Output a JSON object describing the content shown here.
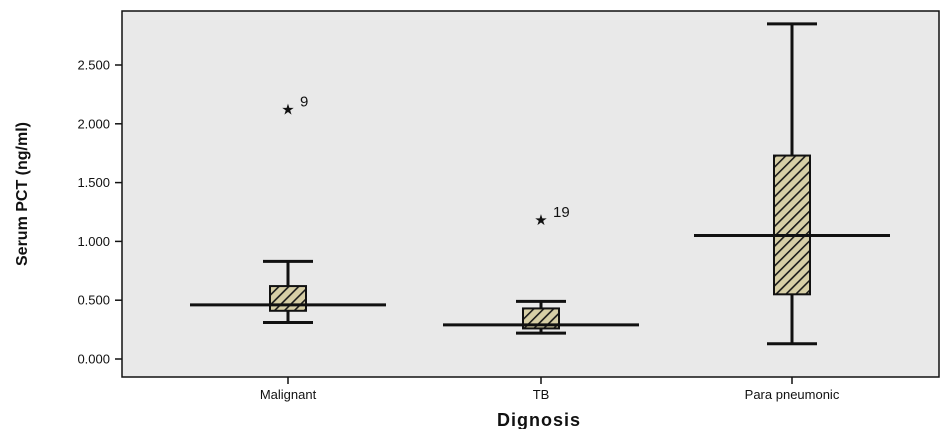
{
  "chart_data": {
    "type": "boxplot",
    "xlabel": "Dignosis",
    "ylabel": "Serum PCT (ng/ml)",
    "ylim": [
      -0.1,
      2.95
    ],
    "yticks": [
      0.0,
      0.5,
      1.0,
      1.5,
      2.0,
      2.5
    ],
    "ytick_labels": [
      "0.000",
      "0.500",
      "1.000",
      "1.500",
      "2.000",
      "2.500"
    ],
    "categories": [
      "Malignant",
      "TB",
      "Para pneumonic"
    ],
    "boxes": [
      {
        "min": 0.31,
        "q1": 0.41,
        "median": 0.46,
        "q3": 0.62,
        "max": 0.83,
        "outliers": [
          {
            "value": 2.12,
            "label": "9"
          }
        ]
      },
      {
        "min": 0.22,
        "q1": 0.26,
        "median": 0.29,
        "q3": 0.43,
        "max": 0.49,
        "outliers": [
          {
            "value": 1.18,
            "label": "19"
          }
        ]
      },
      {
        "min": 0.13,
        "q1": 0.55,
        "median": 1.05,
        "q3": 1.73,
        "max": 2.85,
        "outliers": []
      }
    ],
    "grid": false,
    "legend": "none",
    "colors": {
      "plot_background": "#e9e9e9",
      "box_fill": "#d7cfa6",
      "box_hatch": "#1a1a1a",
      "line": "#111111"
    }
  }
}
